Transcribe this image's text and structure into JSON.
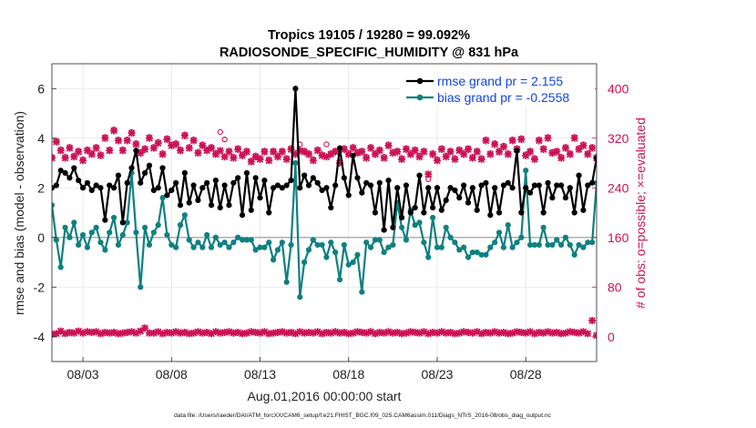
{
  "chart_data": {
    "type": "line",
    "title_line1": "Tropics 19105 / 19280 = 99.092%",
    "title_line2": "RADIOSONDE_SPECIFIC_HUMIDITY @ 831 hPa",
    "xlabel": "Aug.01,2016 00:00:00 start",
    "ylabel_left": "rmse and bias (model - observation)",
    "ylabel_right": "# of obs: o=possible; ×=evaluated",
    "footer": "data file: /Users/raeder/DAI/ATM_forcXX/CAM6_setup/f.e21.FHIST_BGC.f09_025.CAM6assim.011/Diags_NTrS_2016-08/obs_diag_output.nc",
    "x_range": [
      1.25,
      32.0
    ],
    "ylim_left": [
      -5,
      7
    ],
    "ylim_right": [
      -40,
      440
    ],
    "x_ticks": [
      3,
      8,
      13,
      18,
      23,
      28
    ],
    "x_tick_labels": [
      "08/03",
      "08/08",
      "08/13",
      "08/18",
      "08/23",
      "08/28"
    ],
    "y_ticks_left": [
      -4,
      -2,
      0,
      2,
      4,
      6
    ],
    "y_tick_labels_left": [
      "-4",
      "-2",
      "0",
      "2",
      "4",
      "6"
    ],
    "y_ticks_right": [
      0,
      80,
      160,
      240,
      320,
      400
    ],
    "y_tick_labels_right": [
      "0",
      "80",
      "160",
      "240",
      "320",
      "400"
    ],
    "zero_line": 0,
    "colors": {
      "rmse": "#000000",
      "bias": "#0f8080",
      "obs": "#cc1155",
      "legend_text": "#1144dd",
      "zero": "#b0b0b0"
    },
    "series": [
      {
        "name": "rmse grand pr = 2.155",
        "x_start": 1.25,
        "x_step": 0.25,
        "values": [
          2.0,
          2.1,
          2.7,
          2.6,
          2.4,
          2.8,
          2.3,
          2.0,
          2.2,
          1.9,
          2.1,
          2.0,
          0.7,
          2.1,
          2.0,
          2.5,
          0.6,
          2.2,
          2.8,
          3.5,
          2.2,
          2.6,
          2.9,
          1.9,
          2.0,
          2.8,
          1.7,
          1.9,
          2.2,
          1.3,
          2.6,
          1.4,
          2.1,
          1.5,
          2.0,
          2.2,
          1.3,
          2.3,
          1.2,
          2.1,
          1.3,
          2.2,
          2.4,
          0.9,
          2.6,
          1.1,
          2.4,
          1.6,
          2.3,
          1.0,
          2.0,
          2.1,
          2.0,
          2.1,
          2.3,
          6.0,
          2.0,
          2.5,
          2.1,
          2.4,
          2.2,
          1.9,
          2.0,
          1.2,
          2.1,
          3.6,
          2.4,
          1.7,
          3.3,
          2.4,
          1.8,
          2.2,
          2.1,
          1.0,
          2.2,
          0.3,
          2.3,
          0.4,
          2.0,
          0.8,
          2.1,
          1.0,
          1.2,
          2.5,
          1.0,
          2.0,
          1.2,
          2.0,
          1.1,
          1.5,
          2.0,
          1.9,
          1.6,
          2.1,
          1.4,
          2.0,
          1.1,
          2.1,
          2.2,
          0.9,
          2.0,
          1.0,
          2.1,
          2.2,
          2.0,
          3.5,
          1.0,
          2.0,
          1.8,
          2.1,
          2.1,
          1.0,
          2.2,
          1.6,
          2.1,
          2.1,
          1.6,
          2.0,
          1.0,
          2.5,
          1.1,
          2.1,
          2.2,
          3.2
        ]
      },
      {
        "name": "bias grand pr = -0.2558",
        "x_start": 1.25,
        "x_step": 0.25,
        "values": [
          1.3,
          -0.1,
          -1.2,
          0.4,
          0.0,
          0.6,
          -0.3,
          0.1,
          -0.4,
          0.2,
          0.4,
          -0.2,
          -0.5,
          0.2,
          0.8,
          -0.3,
          0.1,
          0.6,
          2.6,
          0.2,
          -2.0,
          0.4,
          -0.3,
          0.2,
          0.5,
          1.6,
          0.1,
          -0.3,
          -0.4,
          0.5,
          0.9,
          -0.1,
          -0.4,
          -0.2,
          -0.4,
          0.1,
          -0.4,
          0.0,
          -0.3,
          -0.2,
          -0.4,
          -0.2,
          0.0,
          -0.1,
          -0.1,
          -0.1,
          -0.5,
          -0.4,
          -0.4,
          -0.2,
          -0.9,
          -0.5,
          -0.2,
          -1.8,
          -0.3,
          3.0,
          -2.4,
          -1.0,
          -0.5,
          -0.1,
          -0.3,
          -0.3,
          -0.8,
          -0.2,
          -0.6,
          -1.7,
          -0.3,
          -1.1,
          -1.0,
          -0.7,
          -2.2,
          -0.2,
          -0.4,
          -0.1,
          -0.1,
          -0.6,
          -0.4,
          -0.3,
          1.4,
          0.4,
          -0.1,
          1.1,
          0.5,
          0.6,
          -0.2,
          -0.8,
          0.8,
          -0.4,
          -0.4,
          0.4,
          0.0,
          -0.2,
          -0.5,
          -0.4,
          -0.8,
          -0.6,
          -0.6,
          -0.7,
          -0.7,
          -0.4,
          -0.2,
          0.2,
          -0.4,
          0.5,
          -0.4,
          -0.2,
          0.0,
          2.7,
          -0.3,
          -0.3,
          -0.3,
          0.4,
          -0.3,
          -0.3,
          -0.1,
          -0.3,
          0.0,
          -0.3,
          -0.7,
          -0.3,
          -0.4,
          -0.2,
          -0.2,
          2.2
        ]
      }
    ],
    "obs_possible": {
      "x_start": 1.25,
      "x_step": 0.25,
      "values": [
        290,
        316,
        302,
        290,
        306,
        292,
        300,
        286,
        302,
        296,
        306,
        294,
        322,
        302,
        334,
        318,
        302,
        318,
        330,
        312,
        298,
        304,
        322,
        306,
        314,
        296,
        320,
        310,
        312,
        302,
        326,
        306,
        318,
        298,
        310,
        302,
        306,
        296,
        330,
        318,
        300,
        290,
        304,
        294,
        300,
        284,
        292,
        288,
        300,
        286,
        300,
        292,
        300,
        288,
        304,
        296,
        310,
        300,
        296,
        286,
        302,
        294,
        310,
        296,
        300,
        282,
        304,
        296,
        306,
        298,
        300,
        290,
        306,
        296,
        302,
        290,
        310,
        298,
        300,
        288,
        304,
        296,
        302,
        292,
        300,
        254,
        296,
        286,
        304,
        292,
        300,
        288,
        302,
        296,
        304,
        290,
        300,
        288,
        318,
        296,
        312,
        300,
        308,
        296,
        318,
        304,
        320,
        294,
        300,
        288,
        318,
        304,
        322,
        298,
        300,
        290,
        306,
        296,
        322,
        304,
        310,
        296,
        306,
        290
      ]
    },
    "obs_evaluated": {
      "x_start": 1.25,
      "x_step": 0.25,
      "values": [
        288,
        314,
        300,
        288,
        304,
        290,
        298,
        284,
        300,
        294,
        304,
        292,
        320,
        300,
        332,
        316,
        300,
        316,
        328,
        310,
        296,
        302,
        320,
        304,
        312,
        294,
        318,
        308,
        310,
        300,
        324,
        304,
        316,
        296,
        308,
        300,
        304,
        294,
        300,
        290,
        298,
        288,
        302,
        292,
        298,
        282,
        290,
        286,
        298,
        284,
        298,
        290,
        298,
        286,
        302,
        294,
        300,
        298,
        294,
        284,
        300,
        292,
        290,
        294,
        298,
        280,
        302,
        294,
        304,
        296,
        298,
        288,
        304,
        294,
        300,
        288,
        308,
        296,
        298,
        286,
        302,
        294,
        300,
        290,
        298,
        262,
        294,
        284,
        302,
        290,
        298,
        286,
        300,
        294,
        302,
        288,
        298,
        286,
        316,
        294,
        310,
        298,
        306,
        294,
        316,
        302,
        318,
        292,
        298,
        286,
        316,
        302,
        320,
        296,
        298,
        288,
        304,
        294,
        320,
        302,
        308,
        294,
        304,
        288
      ]
    },
    "obs_count_low": {
      "x_start": 1.25,
      "x_step": 0.25,
      "values": [
        4,
        5,
        9,
        5,
        7,
        6,
        9,
        6,
        8,
        7,
        8,
        5,
        7,
        6,
        7,
        5,
        6,
        7,
        8,
        6,
        9,
        14,
        6,
        6,
        8,
        5,
        7,
        6,
        8,
        6,
        7,
        5,
        6,
        8,
        6,
        7,
        5,
        8,
        6,
        7,
        8,
        6,
        7,
        5,
        6,
        8,
        7,
        6,
        8,
        5,
        6,
        7,
        8,
        6,
        7,
        5,
        8,
        6,
        7,
        6,
        8,
        5,
        7,
        6,
        8,
        6,
        7,
        5,
        6,
        8,
        7,
        6,
        8,
        5,
        7,
        6,
        8,
        6,
        7,
        5,
        6,
        8,
        7,
        6,
        8,
        5,
        7,
        6,
        8,
        6,
        7,
        5,
        6,
        8,
        7,
        6,
        8,
        5,
        7,
        6,
        8,
        6,
        7,
        5,
        6,
        8,
        7,
        6,
        8,
        5,
        7,
        6,
        8,
        6,
        7,
        5,
        6,
        8,
        7,
        6,
        8,
        5,
        26,
        2
      ]
    }
  }
}
